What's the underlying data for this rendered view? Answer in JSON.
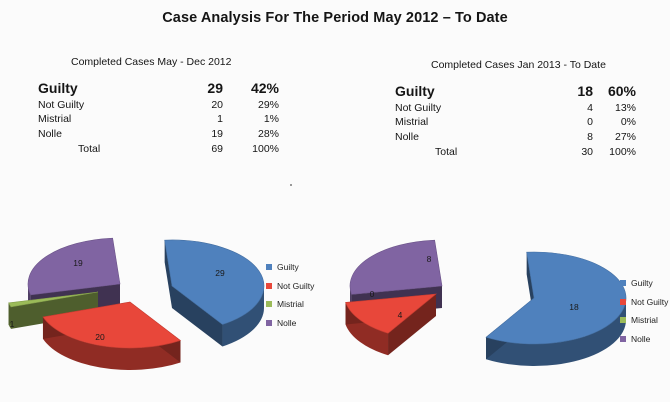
{
  "title": "Case Analysis For The Period  May 2012 – To Date",
  "tables": [
    {
      "subtitle": "Completed Cases  May - Dec 2012",
      "rows": [
        {
          "label": "Guilty",
          "count": "29",
          "pct": "42%"
        },
        {
          "label": "Not Guilty",
          "count": "20",
          "pct": "29%"
        },
        {
          "label": "Mistrial",
          "count": "1",
          "pct": "1%"
        },
        {
          "label": "Nolle",
          "count": "19",
          "pct": "28%"
        }
      ],
      "total": {
        "label": "Total",
        "count": "69",
        "pct": "100%"
      }
    },
    {
      "subtitle": "Completed Cases  Jan 2013 - To Date",
      "rows": [
        {
          "label": "Guilty",
          "count": "18",
          "pct": "60%"
        },
        {
          "label": "Not Guilty",
          "count": "4",
          "pct": "13%"
        },
        {
          "label": "Mistrial",
          "count": "0",
          "pct": "0%"
        },
        {
          "label": "Nolle",
          "count": "8",
          "pct": "27%"
        }
      ],
      "total": {
        "label": "Total",
        "count": "30",
        "pct": "100%"
      }
    }
  ],
  "chart_data": [
    {
      "type": "pie",
      "period": "May - Dec 2012",
      "categories": [
        "Guilty",
        "Not Guilty",
        "Mistrial",
        "Nolle"
      ],
      "values": [
        29,
        20,
        1,
        19
      ],
      "colors": [
        "#4f81bd",
        "#e8473a",
        "#9bbb59",
        "#8064a2"
      ],
      "legend": "right",
      "exploded": true,
      "three_d": true
    },
    {
      "type": "pie",
      "period": "Jan 2013 - To Date",
      "categories": [
        "Guilty",
        "Not Guilty",
        "Mistrial",
        "Nolle"
      ],
      "values": [
        18,
        4,
        0,
        8
      ],
      "colors": [
        "#4f81bd",
        "#e8473a",
        "#9bbb59",
        "#8064a2"
      ],
      "legend": "right",
      "exploded": true,
      "three_d": true
    }
  ]
}
